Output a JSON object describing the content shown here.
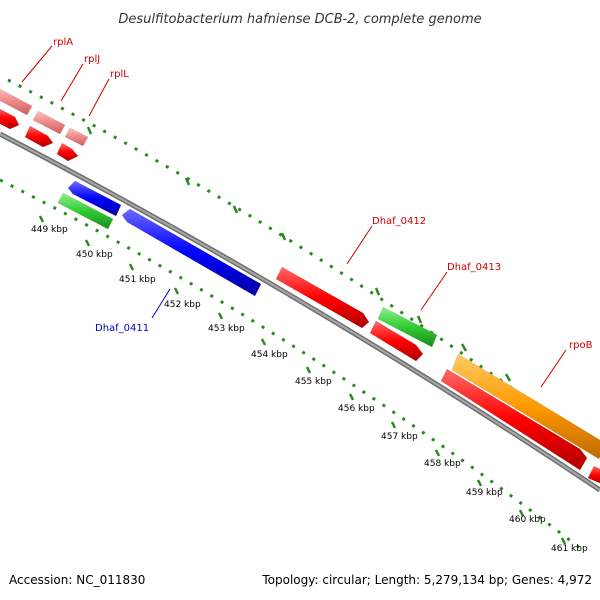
{
  "title": "Desulfitobacterium hafniense DCB-2, complete genome",
  "colors": {
    "backbone": "#888888",
    "tick": "#2a8a1e",
    "gene_label_red": "#cc0000",
    "gene_label_blue": "#0000cc"
  },
  "ruler_labels": [
    "449 kbp",
    "450 kbp",
    "451 kbp",
    "452 kbp",
    "453 kbp",
    "454 kbp",
    "455 kbp",
    "456 kbp",
    "457 kbp",
    "458 kbp",
    "459 kbp",
    "460 kbp",
    "461 kbp"
  ],
  "gene_labels": [
    {
      "name": "rplA",
      "color": "#cc0000"
    },
    {
      "name": "rplJ",
      "color": "#cc0000"
    },
    {
      "name": "rplL",
      "color": "#cc0000"
    },
    {
      "name": "Dhaf_0411",
      "color": "#0000cc"
    },
    {
      "name": "Dhaf_0412",
      "color": "#cc0000"
    },
    {
      "name": "Dhaf_0413",
      "color": "#cc0000"
    },
    {
      "name": "rpoB",
      "color": "#cc0000"
    }
  ],
  "footer": {
    "accession": "Accession: NC_011830",
    "topology": "Topology: circular; Length: 5,279,134 bp; Genes: 4,972"
  }
}
